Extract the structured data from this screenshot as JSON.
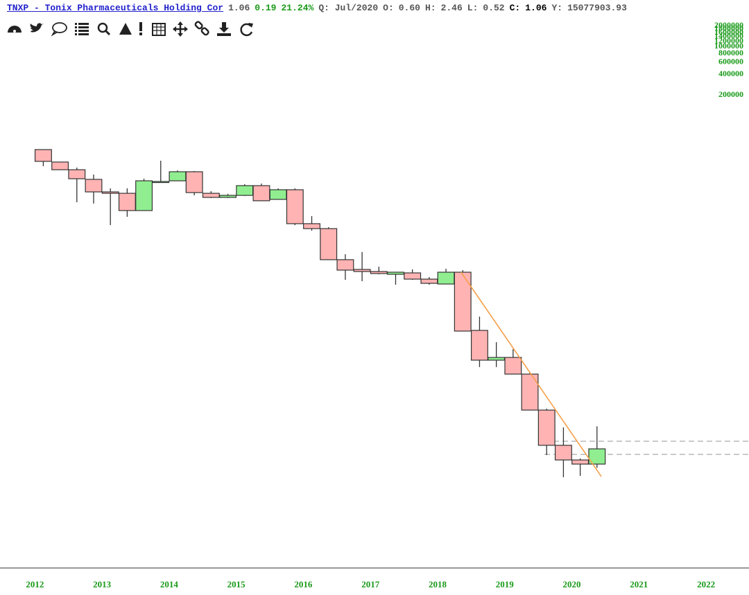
{
  "header": {
    "symbol": "TNXP - Tonix Pharmaceuticals Holding Cor",
    "last": "1.06",
    "change": "0.19",
    "change_pct": "21.24%",
    "period": "Q: Jul/2020",
    "open_label": "O:",
    "open": "0.60",
    "high_label": "H:",
    "high": "2.46",
    "low_label": "L:",
    "low": "0.52",
    "close_label": "C:",
    "close": "1.06",
    "volume_label": "Y:",
    "volume": "15077903.93"
  },
  "chart_data": {
    "type": "candlestick",
    "log_scale": true,
    "up_color": "#90ee90",
    "down_color": "#ffb3b3",
    "x": [
      2012,
      2012.25,
      2012.5,
      2012.75,
      2013,
      2013.25,
      2013.5,
      2013.75,
      2014,
      2014.25,
      2014.5,
      2014.75,
      2015,
      2015.25,
      2015.5,
      2015.75,
      2016,
      2016.25,
      2016.5,
      2016.75,
      2017,
      2017.25,
      2017.5,
      2017.75,
      2018,
      2018.25,
      2018.5,
      2018.75,
      2019,
      2019.25,
      2019.5,
      2019.75,
      2020,
      2020.25
    ],
    "open": [
      75700,
      47600,
      35700,
      24900,
      15600,
      14800,
      7770,
      22500,
      23600,
      33100,
      14800,
      12700,
      13700,
      19700,
      11800,
      16900,
      4760,
      3960,
      1240,
      862,
      797,
      719,
      757,
      600,
      500,
      777,
      88.4,
      29.1,
      32.2,
      17.3,
      4.51,
      1.21,
      0.7,
      0.6
    ],
    "high": [
      75700,
      47600,
      38700,
      29800,
      17800,
      17800,
      25500,
      50000,
      34800,
      34000,
      16000,
      14500,
      20800,
      21300,
      17800,
      17800,
      6320,
      4180,
      1520,
      1650,
      956,
      777,
      862,
      649,
      884,
      840,
      148,
      56.9,
      44.0,
      18.2,
      4.76,
      2.36,
      0.739,
      2.46
    ],
    "low": [
      40700,
      35700,
      10600,
      10100,
      4510,
      6160,
      7770,
      22500,
      23600,
      13700,
      12400,
      12400,
      13400,
      11200,
      11800,
      4510,
      3670,
      1240,
      585,
      555,
      719,
      488,
      585,
      488,
      500,
      86.2,
      22.5,
      22.5,
      17.3,
      4.51,
      0.84,
      0.367,
      0.387,
      0.52
    ],
    "close": [
      48800,
      35700,
      25500,
      15600,
      14800,
      7770,
      23600,
      23000,
      33100,
      15200,
      12700,
      13700,
      19700,
      11200,
      16900,
      4760,
      3960,
      1240,
      840,
      797,
      739,
      777,
      600,
      513,
      777,
      86.2,
      29.1,
      32.2,
      17.3,
      4.51,
      1.21,
      0.7,
      0.6,
      1.06
    ],
    "xlim": [
      2011.48,
      2022.64
    ],
    "xticks": [
      2012,
      2013,
      2014,
      2015,
      2016,
      2017,
      2018,
      2019,
      2020,
      2021,
      2022
    ],
    "ylim": [
      0.0141,
      9300000
    ],
    "y2lim": [
      0.0325,
      2300000
    ],
    "y2ticks": [
      200000,
      400000,
      600000,
      800000,
      1000000,
      1200000,
      1400000,
      1600000,
      1800000,
      2000000
    ],
    "trendline": {
      "color": "#f5a04a",
      "x": [
        2018.35,
        2020.44
      ],
      "y": [
        777,
        0.376
      ]
    },
    "levels": [
      1.41,
      0.862
    ]
  }
}
